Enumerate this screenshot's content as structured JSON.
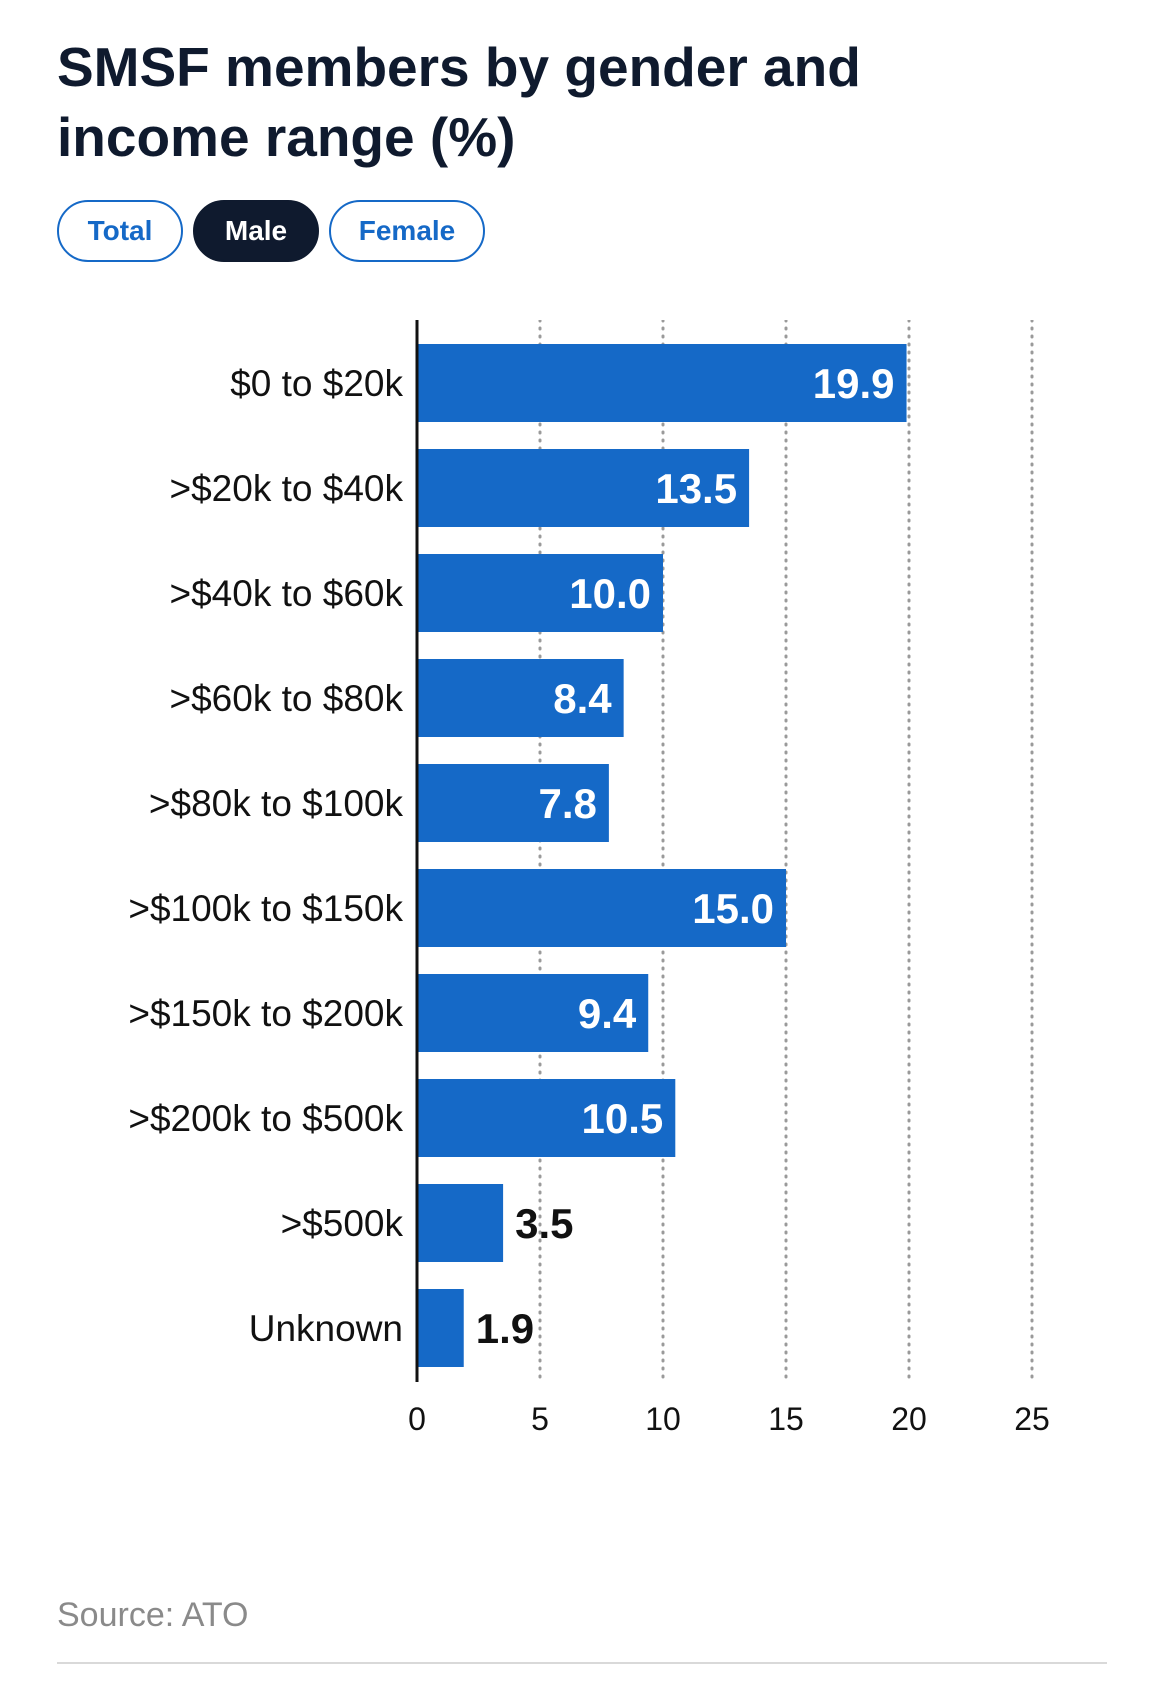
{
  "title": "SMSF members by gender and income range (%)",
  "tabs": [
    {
      "label": "Total",
      "active": false
    },
    {
      "label": "Male",
      "active": true
    },
    {
      "label": "Female",
      "active": false
    }
  ],
  "source": "Source: ATO",
  "colors": {
    "bar": "#1569c7",
    "title": "#0f1a2e",
    "accent": "#1569c7"
  },
  "chart_data": {
    "type": "bar",
    "orientation": "horizontal",
    "categories": [
      "$0 to $20k",
      ">$20k to $40k",
      ">$40k to $60k",
      ">$60k to $80k",
      ">$80k to $100k",
      ">$100k to $150k",
      ">$150k to $200k",
      ">$200k to $500k",
      ">$500k",
      "Unknown"
    ],
    "values": [
      19.9,
      13.5,
      10.0,
      8.4,
      7.8,
      15.0,
      9.4,
      10.5,
      3.5,
      1.9
    ],
    "value_labels": [
      "19.9",
      "13.5",
      "10.0",
      "8.4",
      "7.8",
      "15.0",
      "9.4",
      "10.5",
      "3.5",
      "1.9"
    ],
    "xlim": [
      0,
      25
    ],
    "ticks": [
      "0",
      "5",
      "10",
      "15",
      "20",
      "25"
    ],
    "grid": "vertical dotted",
    "xlabel": "",
    "ylabel": ""
  }
}
